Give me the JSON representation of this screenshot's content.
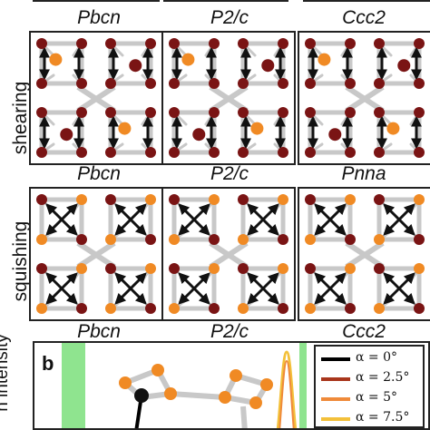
{
  "group_labels": {
    "top": [
      "Pbcn",
      "P2/c",
      "Ccc2"
    ],
    "middle": [
      "Pbcn",
      "P2/c",
      "Pnna"
    ],
    "bottom": [
      "Pbcn",
      "P2/c",
      "Ccc2"
    ]
  },
  "rows": {
    "shearing": "shearing",
    "squishing": "squishing"
  },
  "chart": {
    "panel_label": "b",
    "ylabel": "n intensity",
    "legend": [
      {
        "label": "α = 0°",
        "color": "#000000"
      },
      {
        "label": "α = 2.5°",
        "color": "#a8361c"
      },
      {
        "label": "α = 5°",
        "color": "#ef8a3a"
      },
      {
        "label": "α = 7.5°",
        "color": "#f3c03a"
      }
    ]
  },
  "colors": {
    "orange_atom": "#f08a24",
    "dark_atom": "#7a1414",
    "bond": "#c8c8c8",
    "band": "#8fe48f"
  }
}
